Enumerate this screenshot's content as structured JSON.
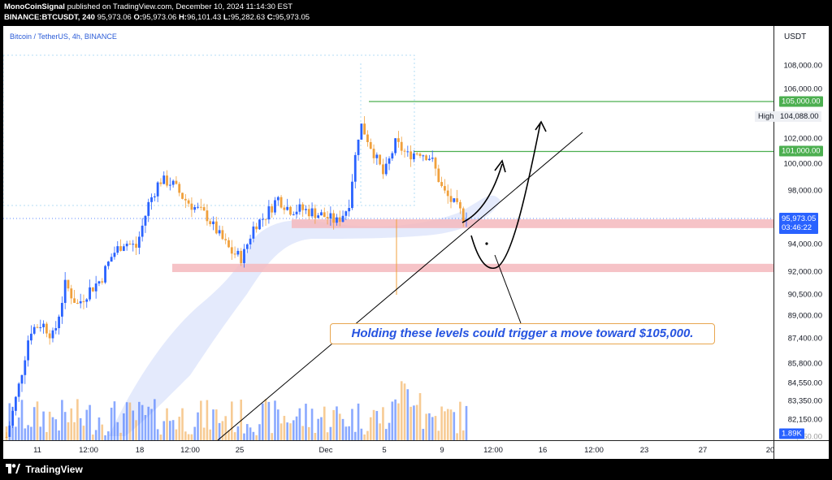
{
  "header": {
    "publisher": "MonoCoinSignal",
    "published_text": "published on TradingView.com, December 10, 2024 11:14:30 EST",
    "symbol": "BINANCE:BTCUSDT,",
    "interval": "240",
    "open_value": "95,973.06",
    "high_value": "96,101.43",
    "low_value": "95,282.63",
    "close_value": "95,973.05",
    "o_label": "O:",
    "h_label": "H:",
    "l_label": "L:",
    "c_label": "C:"
  },
  "chart_title": "Bitcoin / TetherUS, 4h, BINANCE",
  "currency": "USDT",
  "annotation": "Holding these levels could trigger a move toward $105,000.",
  "price_labels": [
    "108,000.00",
    "106,000.00",
    "102,000.00",
    "100,000.00",
    "98,000.00",
    "94,000.00",
    "92,000.00",
    "90,500.00",
    "89,000.00",
    "87,400.00",
    "85,800.00",
    "84,550.00",
    "83,350.00",
    "82,150.00",
    "80,950.00"
  ],
  "tags": {
    "level_105000": "105,000.00",
    "level_101000": "101,000.00",
    "high_label": "High",
    "high_value": "104,088.00",
    "last_price": "95,973.05",
    "countdown": "03:46:22",
    "volume": "1.89K"
  },
  "time_labels": [
    "11",
    "12:00",
    "18",
    "12:00",
    "25",
    "Dec",
    "5",
    "9",
    "12:00",
    "16",
    "12:00",
    "23",
    "27",
    "20"
  ],
  "colors": {
    "up": "#2962ff",
    "down": "#f0a03c",
    "support_zone": "#f4b8bd",
    "green_line": "#4caf50",
    "cloud": "#dfe6fb"
  },
  "footer": {
    "brand": "TradingView"
  },
  "chart_data": {
    "type": "candlestick",
    "title": "Bitcoin / TetherUS, 4h, BINANCE",
    "y_unit": "USDT",
    "ylim": [
      80950,
      109000
    ],
    "x_ticks": [
      "11",
      "12:00",
      "18",
      "12:00",
      "25",
      "Dec",
      "5",
      "9",
      "12:00",
      "16",
      "12:00",
      "23",
      "27",
      "20"
    ],
    "horizontal_levels": [
      105000,
      101000
    ],
    "support_zones": [
      [
        95300,
        96000
      ],
      [
        92000,
        92600
      ]
    ],
    "high": 104088,
    "last": 95973.05,
    "path_closes": [
      80950,
      84200,
      88000,
      88500,
      87500,
      91200,
      89800,
      90800,
      91500,
      93300,
      94200,
      93800,
      97000,
      98800,
      98600,
      97500,
      96800,
      96200,
      94800,
      93500,
      93000,
      95500,
      96300,
      97500,
      96700,
      96700,
      96500,
      96200,
      95800,
      96900,
      103300,
      101200,
      99100,
      101700,
      100700,
      101000,
      100500,
      98000,
      97000,
      95973
    ]
  }
}
